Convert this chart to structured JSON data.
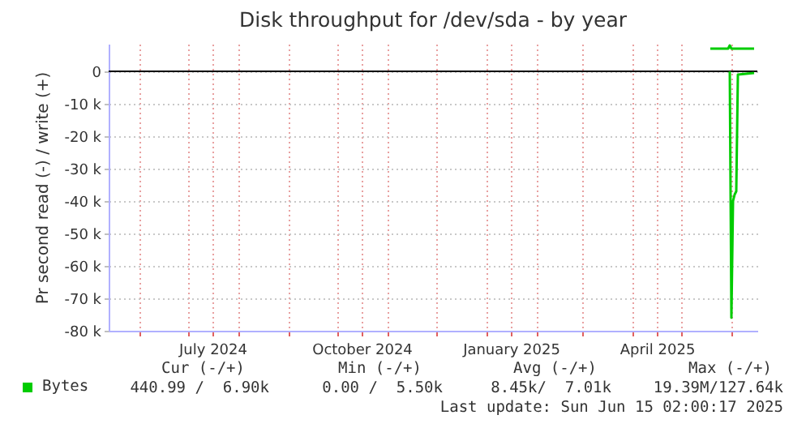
{
  "chart_data": {
    "type": "line",
    "title": "Disk throughput for /dev/sda - by year",
    "ylabel": "Pr second read (-) / write (+)",
    "series": [
      {
        "name": "Bytes",
        "color": "#00cc00",
        "x": [
          "2025-05-31",
          "2025-06-01",
          "2025-06-02",
          "2025-06-03",
          "2025-06-04",
          "2025-06-05",
          "2025-06-15"
        ],
        "values": [
          0,
          -76000,
          -40000,
          -38000,
          -37000,
          -1000,
          -500
        ]
      },
      {
        "color": "#00cc00",
        "x": [
          "2025-05-19",
          "2025-05-30",
          "2025-05-31",
          "2025-06-01",
          "2025-06-15"
        ],
        "values": [
          7000,
          7000,
          8000,
          7000,
          7000
        ]
      }
    ],
    "xlim": [
      "2024-05-13",
      "2025-06-17"
    ],
    "xticks": [
      {
        "value": "2024-06-01",
        "label": null
      },
      {
        "value": "2024-07-01",
        "label": null
      },
      {
        "value": "2024-07-16",
        "label": "July 2024"
      },
      {
        "value": "2024-08-01",
        "label": null
      },
      {
        "value": "2024-09-01",
        "label": null
      },
      {
        "value": "2024-10-01",
        "label": null
      },
      {
        "value": "2024-10-16",
        "label": "October 2024"
      },
      {
        "value": "2024-11-01",
        "label": null
      },
      {
        "value": "2024-12-01",
        "label": null
      },
      {
        "value": "2025-01-01",
        "label": null
      },
      {
        "value": "2025-01-16",
        "label": "January 2025"
      },
      {
        "value": "2025-02-01",
        "label": null
      },
      {
        "value": "2025-03-01",
        "label": null
      },
      {
        "value": "2025-04-01",
        "label": null
      },
      {
        "value": "2025-04-16",
        "label": "April 2025"
      },
      {
        "value": "2025-05-01",
        "label": null
      },
      {
        "value": "2025-06-01",
        "label": null
      }
    ],
    "ylim": [
      -80000,
      8500
    ],
    "yticks": [
      {
        "value": -80000,
        "label": "-80 k"
      },
      {
        "value": -70000,
        "label": "-70 k"
      },
      {
        "value": -60000,
        "label": "-60 k"
      },
      {
        "value": -50000,
        "label": "-50 k"
      },
      {
        "value": -40000,
        "label": "-40 k"
      },
      {
        "value": -30000,
        "label": "-30 k"
      },
      {
        "value": -20000,
        "label": "-20 k"
      },
      {
        "value": -10000,
        "label": "-10 k"
      },
      {
        "value": 0,
        "label": "0"
      }
    ],
    "grid": true,
    "legend": "bottom left",
    "ref_lines": [
      {
        "axis": "y",
        "value": 0,
        "color": "#000000"
      }
    ],
    "annotations": [
      "Cur (-/+)",
      "Min (-/+)",
      "Avg (-/+)",
      "Max (-/+)",
      "440.99 /  6.90k",
      "0.00 /  5.50k",
      "8.45k/  7.01k",
      "19.39M/127.64k",
      "Last update: Sun Jun 15 02:00:17 2025"
    ]
  }
}
